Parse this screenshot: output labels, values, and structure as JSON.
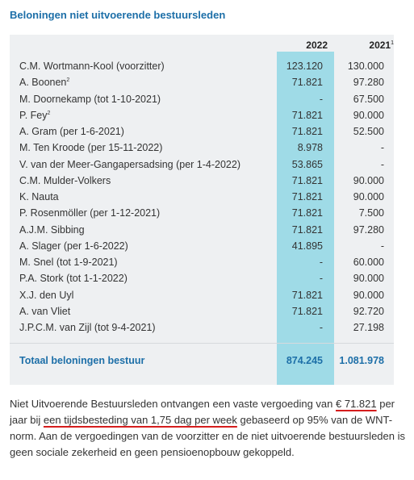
{
  "title": "Beloningen niet uitvoerende bestuursleden",
  "table": {
    "col1_header": "2022",
    "col2_header": "2021",
    "col2_header_sup": "1",
    "rows": [
      {
        "name": "C.M. Wortmann-Kool (voorzitter)",
        "sup": "",
        "v2022": "123.120",
        "v2021": "130.000"
      },
      {
        "name": "A. Boonen",
        "sup": "2",
        "v2022": "71.821",
        "v2021": "97.280"
      },
      {
        "name": "M. Doornekamp (tot 1-10-2021)",
        "sup": "",
        "v2022": "-",
        "v2021": "67.500"
      },
      {
        "name": "P. Fey",
        "sup": "2",
        "v2022": "71.821",
        "v2021": "90.000"
      },
      {
        "name": "A. Gram (per 1-6-2021)",
        "sup": "",
        "v2022": "71.821",
        "v2021": "52.500"
      },
      {
        "name": "M. Ten Kroode (per 15-11-2022)",
        "sup": "",
        "v2022": "8.978",
        "v2021": "-"
      },
      {
        "name": "V. van der Meer-Gangapersadsing (per 1-4-2022)",
        "sup": "",
        "v2022": "53.865",
        "v2021": "-"
      },
      {
        "name": "C.M. Mulder-Volkers",
        "sup": "",
        "v2022": "71.821",
        "v2021": "90.000"
      },
      {
        "name": "K. Nauta",
        "sup": "",
        "v2022": "71.821",
        "v2021": "90.000"
      },
      {
        "name": "P. Rosenmöller (per 1-12-2021)",
        "sup": "",
        "v2022": "71.821",
        "v2021": "7.500"
      },
      {
        "name": "A.J.M. Sibbing",
        "sup": "",
        "v2022": "71.821",
        "v2021": "97.280"
      },
      {
        "name": "A. Slager (per 1-6-2022)",
        "sup": "",
        "v2022": "41.895",
        "v2021": "-"
      },
      {
        "name": "M. Snel (tot 1-9-2021)",
        "sup": "",
        "v2022": "-",
        "v2021": "60.000"
      },
      {
        "name": "P.A. Stork (tot 1-1-2022)",
        "sup": "",
        "v2022": "-",
        "v2021": "90.000"
      },
      {
        "name": "X.J. den Uyl",
        "sup": "",
        "v2022": "71.821",
        "v2021": "90.000"
      },
      {
        "name": "A. van Vliet",
        "sup": "",
        "v2022": "71.821",
        "v2021": "92.720"
      },
      {
        "name": "J.P.C.M. van Zijl (tot 9-4-2021)",
        "sup": "",
        "v2022": "-",
        "v2021": "27.198"
      }
    ],
    "total": {
      "name": "Totaal beloningen bestuur",
      "v2022": "874.245",
      "v2021": "1.081.978"
    }
  },
  "paragraph": {
    "p1": "Niet Uitvoerende Bestuursleden ontvangen een vaste vergoeding van ",
    "amount": "€ 71.821",
    "p2": " per jaar bij ",
    "time": "een tijdsbesteding van 1,75 dag per week",
    "p3": " gebaseerd op 95% van de WNT-norm. Aan de vergoedingen van de voorzitter en de niet uitvoerende bestuursleden is geen sociale zekerheid en geen pensioenopbouw gekoppeld."
  },
  "colors": {
    "title": "#1d6fa8",
    "highlight": "#9fdbe7",
    "panel": "#eef0f2",
    "underline": "#d51d1d"
  }
}
